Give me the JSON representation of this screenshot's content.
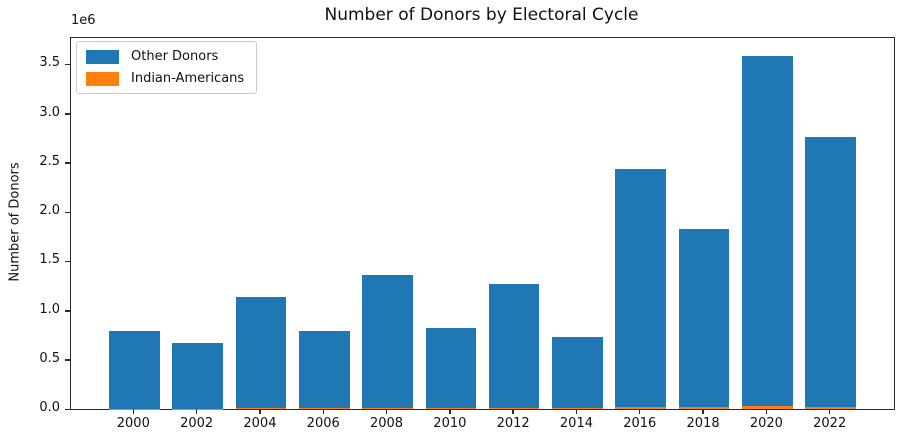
{
  "title": "Number of Donors by Electoral Cycle",
  "axes": {
    "y_label": "Number of Donors",
    "offset_text": "1e6",
    "y_ticks": [
      "0.0",
      "0.5",
      "1.0",
      "1.5",
      "2.0",
      "2.5",
      "3.0",
      "3.5"
    ],
    "x_ticks": [
      "2000",
      "2002",
      "2004",
      "2006",
      "2008",
      "2010",
      "2012",
      "2014",
      "2016",
      "2018",
      "2020",
      "2022"
    ]
  },
  "legend": {
    "items": [
      {
        "label": "Other Donors",
        "color": "#1f77b4"
      },
      {
        "label": "Indian-Americans",
        "color": "#ff7f0e"
      }
    ]
  },
  "colors": {
    "other_donors": "#1f77b4",
    "indian_americans": "#ff7f0e",
    "spine": "#2b2b2b",
    "background": "#ffffff"
  },
  "chart_data": {
    "type": "bar",
    "stacked": true,
    "title": "Number of Donors by Electoral Cycle",
    "xlabel": "",
    "ylabel": "Number of Donors",
    "legend_position": "upper left",
    "grid": false,
    "categories": [
      2000,
      2002,
      2004,
      2006,
      2008,
      2010,
      2012,
      2014,
      2016,
      2018,
      2020,
      2022
    ],
    "series": [
      {
        "name": "Indian-Americans",
        "color": "#ff7f0e",
        "values": [
          4000,
          4000,
          10000,
          6000,
          10000,
          10000,
          12000,
          12000,
          22000,
          20000,
          30000,
          24000
        ]
      },
      {
        "name": "Other Donors",
        "color": "#1f77b4",
        "values": [
          786000,
          666000,
          1130000,
          784000,
          1350000,
          810000,
          1258000,
          718000,
          2418000,
          1810000,
          3550000,
          2736000
        ]
      }
    ],
    "totals": [
      790000,
      670000,
      1140000,
      790000,
      1360000,
      820000,
      1270000,
      730000,
      2440000,
      1830000,
      3580000,
      2760000
    ],
    "ylim": [
      0,
      3767000
    ],
    "xlim": [
      1998,
      2024
    ],
    "bar_width_x_units": 1.6,
    "y_tick_scale": 1000000
  }
}
